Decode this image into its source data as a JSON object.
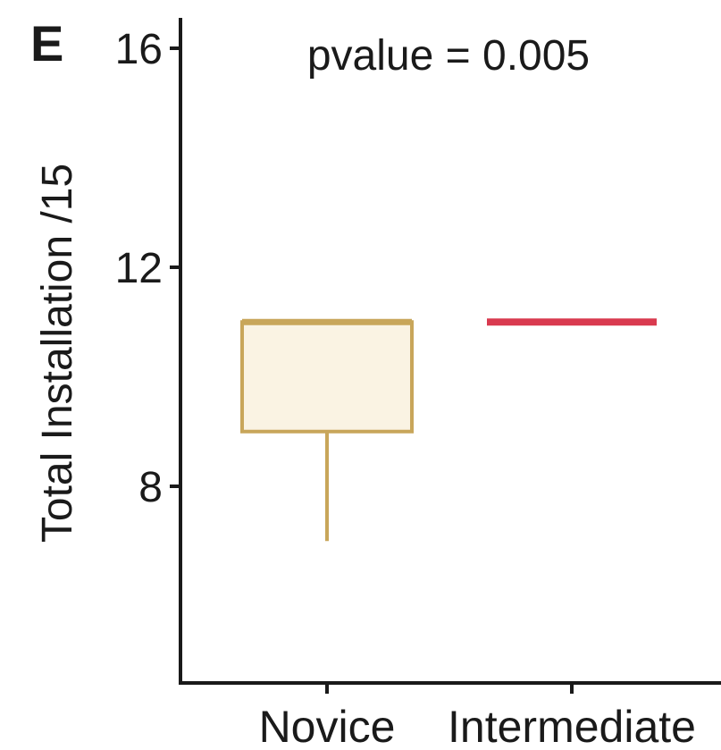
{
  "chart_data": {
    "type": "box",
    "panel_label": "E",
    "annotation": "pvalue = 0.005",
    "ylabel": "Total Installation /15",
    "xlabel": "",
    "ylim": [
      4.5,
      16.4
    ],
    "yticks": [
      8,
      12,
      16
    ],
    "categories": [
      "Novice",
      "Intermediate"
    ],
    "boxes": [
      {
        "category": "Novice",
        "min": 7,
        "q1": 9,
        "median": 11,
        "q3": 11,
        "max": 11,
        "color": "#c8a65a",
        "fill": "#faf3e3"
      },
      {
        "category": "Intermediate",
        "min": 11,
        "q1": 11,
        "median": 11,
        "q3": 11,
        "max": 11,
        "color": "#d93a4f",
        "fill": "#fbe3e6"
      }
    ],
    "grid": false,
    "legend": "none"
  }
}
